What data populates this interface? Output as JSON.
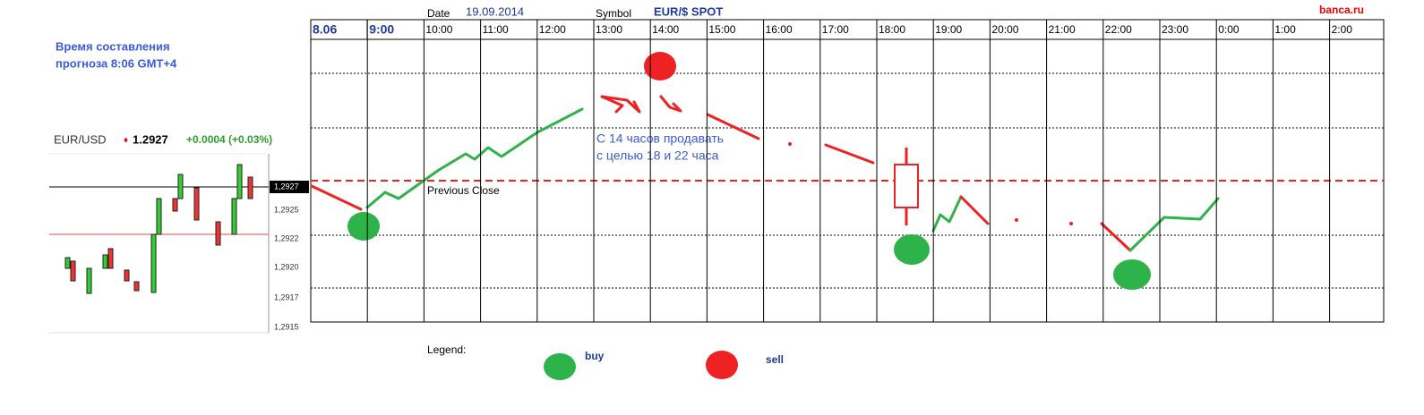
{
  "header": {
    "date_label": "Date",
    "date": "19.09.2014",
    "symbol_label": "Symbol",
    "symbol": "EUR/$ SPOT",
    "brand": "banca.ru"
  },
  "note": {
    "line1": "Время составления",
    "line2": "прогноза 8:06 GMT+4"
  },
  "quote": {
    "symbol": "EUR/USD",
    "price": "1.2927",
    "change": "+0.0004 (+0.03%)",
    "axis_labels": [
      "1,2927",
      "1,2925",
      "1,2922",
      "1,2920",
      "1,2917",
      "1,2915"
    ]
  },
  "timeline": {
    "labels": [
      "8.06",
      "9:00",
      "10:00",
      "11:00",
      "12:00",
      "13:00",
      "14:00",
      "15:00",
      "16:00",
      "17:00",
      "18:00",
      "19:00",
      "20:00",
      "21:00",
      "22:00",
      "23:00",
      "0:00",
      "1:00",
      "2:00"
    ]
  },
  "annotations": {
    "forecast": [
      "С 14 часов продавать",
      "с целью 18 и 22 часа"
    ],
    "previous_close": "Previous Close"
  },
  "legend": {
    "title": "Legend:",
    "buy": "buy",
    "sell": "sell"
  }
}
